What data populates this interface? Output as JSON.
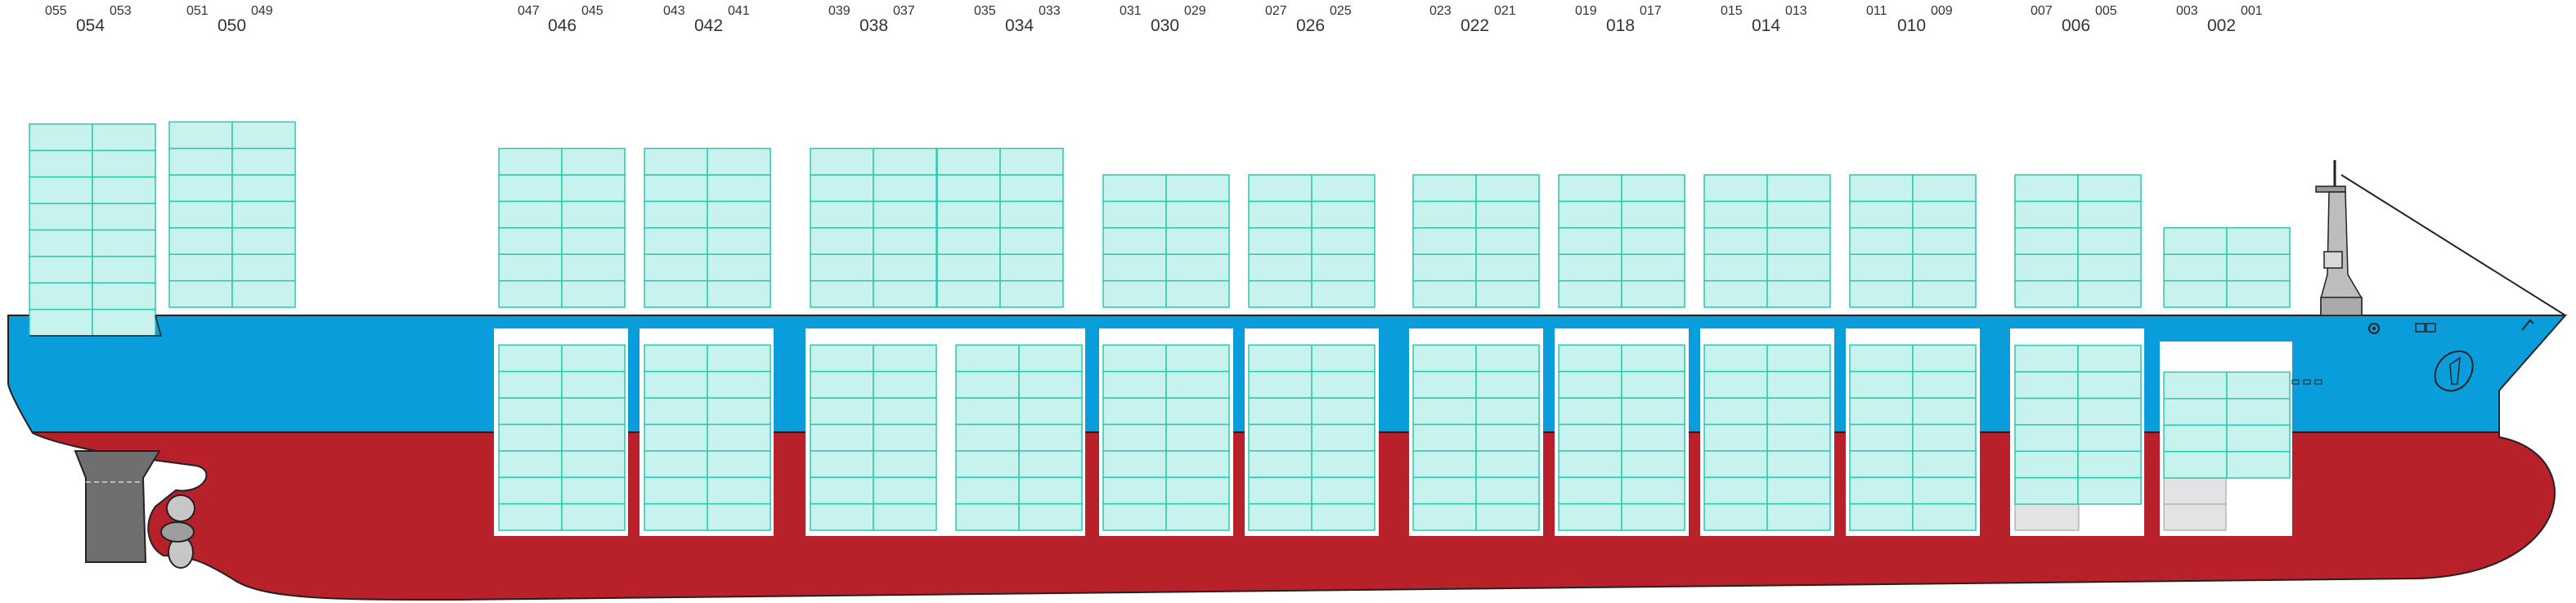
{
  "colors": {
    "hull_upper": "#0a9ddb",
    "hull_lower": "#b8202a",
    "container_fill": "#c7f2ee",
    "container_stroke": "#2dc8b0",
    "hold_fill": "#ffffff",
    "empty_slot": "#e3e3e6",
    "machinery": "#6f6f6f",
    "outline": "#222222",
    "label_text": "#333333"
  },
  "bays": [
    {
      "main": "054",
      "aft": "055",
      "fore": "053",
      "deck_tiers": 8,
      "hold_tiers": 0
    },
    {
      "main": "050",
      "aft": "051",
      "fore": "049",
      "deck_tiers": 7,
      "hold_tiers": 0
    },
    {
      "main": "046",
      "aft": "047",
      "fore": "045",
      "deck_tiers": 6,
      "hold_tiers": 7
    },
    {
      "main": "042",
      "aft": "043",
      "fore": "041",
      "deck_tiers": 6,
      "hold_tiers": 7
    },
    {
      "main": "038",
      "aft": "039",
      "fore": "037",
      "deck_tiers": 6,
      "hold_tiers": 7
    },
    {
      "main": "034",
      "aft": "035",
      "fore": "033",
      "deck_tiers": 6,
      "hold_tiers": 7
    },
    {
      "main": "030",
      "aft": "031",
      "fore": "029",
      "deck_tiers": 5,
      "hold_tiers": 7
    },
    {
      "main": "026",
      "aft": "027",
      "fore": "025",
      "deck_tiers": 5,
      "hold_tiers": 7
    },
    {
      "main": "022",
      "aft": "023",
      "fore": "021",
      "deck_tiers": 5,
      "hold_tiers": 7
    },
    {
      "main": "018",
      "aft": "019",
      "fore": "017",
      "deck_tiers": 5,
      "hold_tiers": 7
    },
    {
      "main": "014",
      "aft": "015",
      "fore": "013",
      "deck_tiers": 5,
      "hold_tiers": 7
    },
    {
      "main": "010",
      "aft": "011",
      "fore": "009",
      "deck_tiers": 5,
      "hold_tiers": 7
    },
    {
      "main": "006",
      "aft": "007",
      "fore": "005",
      "deck_tiers": 5,
      "hold_tiers": 6
    },
    {
      "main": "002",
      "aft": "003",
      "fore": "001",
      "deck_tiers": 3,
      "hold_tiers": 4
    }
  ]
}
